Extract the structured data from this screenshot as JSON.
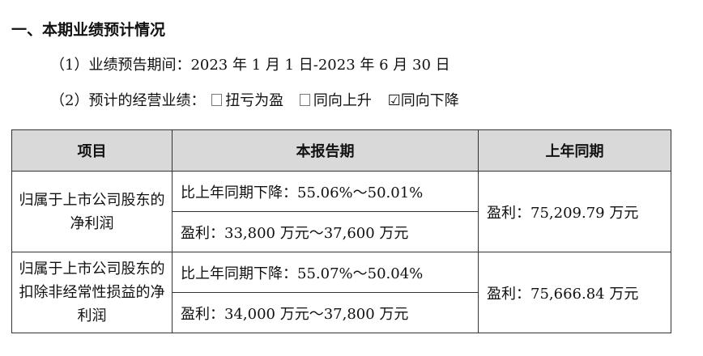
{
  "section_title": "一、本期业绩预计情况",
  "period": "（1）业绩预告期间：2023 年 1 月 1 日-2023 年 6 月 30 日",
  "forecast": {
    "label": "（2）预计的经营业绩：",
    "options": [
      {
        "label": "扭亏为盈",
        "checked": false
      },
      {
        "label": "同向上升",
        "checked": false
      },
      {
        "label": "同向下降",
        "checked": true
      }
    ]
  },
  "table": {
    "headers": [
      "项目",
      "本报告期",
      "上年同期"
    ],
    "rows": [
      {
        "item": "归属于上市公司股东的净利润",
        "current": [
          "比上年同期下降：55.06%～50.01%",
          "盈利：33,800 万元～37,600 万元"
        ],
        "prior": "盈利：75,209.79 万元"
      },
      {
        "item": "归属于上市公司股东的扣除非经常性损益的净利润",
        "current": [
          "比上年同期下降：55.07%～50.04%",
          "盈利：34,000 万元～37,800 万元"
        ],
        "prior": "盈利：75,666.84 万元"
      }
    ]
  }
}
